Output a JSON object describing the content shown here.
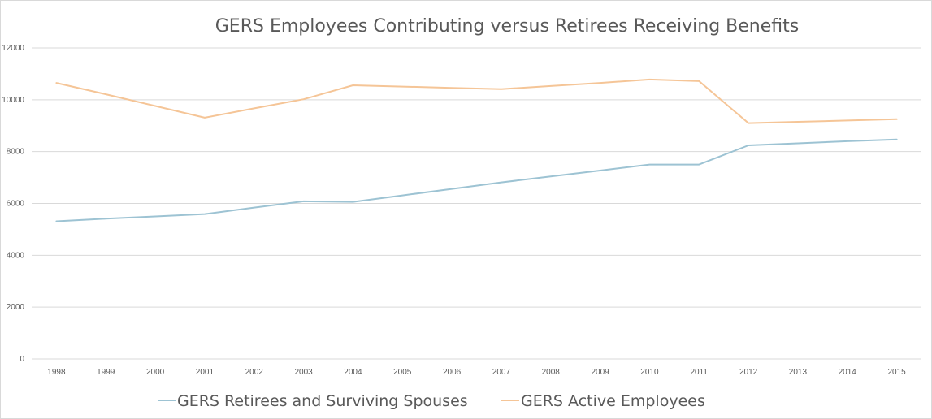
{
  "chart_data": {
    "type": "line",
    "title": "GERS Employees Contributing versus Retirees Receiving Benefits",
    "xlabel": "",
    "ylabel": "",
    "ylim": [
      0,
      12000
    ],
    "yticks": [
      0,
      2000,
      4000,
      6000,
      8000,
      10000,
      12000
    ],
    "grid": "horizontal",
    "legend_position": "bottom",
    "categories": [
      "1998",
      "1999",
      "2000",
      "2001",
      "2002",
      "2003",
      "2004",
      "2005",
      "2006",
      "2007",
      "2008",
      "2009",
      "2010",
      "2011",
      "2012",
      "2013",
      "2014",
      "2015"
    ],
    "series": [
      {
        "name": "GERS Retirees and Surviving Spouses",
        "color": "#9dc3d3",
        "values": [
          5310,
          5410,
          5500,
          5590,
          5840,
          6080,
          6060,
          6310,
          6560,
          6810,
          7040,
          7270,
          7500,
          7500,
          8240,
          8320,
          8400,
          8470
        ]
      },
      {
        "name": "GERS Active Employees",
        "color": "#f5c597",
        "values": [
          10650,
          10210,
          9760,
          9310,
          9670,
          10020,
          10560,
          10510,
          10460,
          10410,
          10530,
          10650,
          10780,
          10720,
          9100,
          9150,
          9200,
          9250
        ]
      }
    ]
  }
}
